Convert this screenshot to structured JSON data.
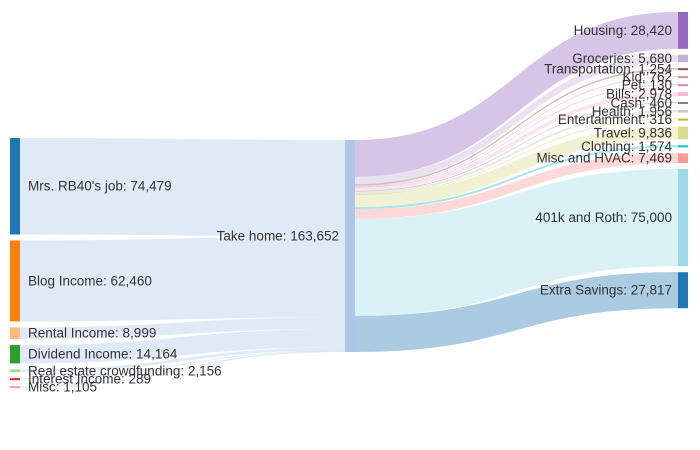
{
  "chart_data": {
    "type": "sankey",
    "total": {
      "name": "Take home",
      "value": 163652,
      "label": "Take home: 163,652",
      "color": "#aec7e8"
    },
    "sources": [
      {
        "name": "Mrs. RB40's job",
        "value": 74479,
        "label": "Mrs. RB40's job: 74,479",
        "color": "#1f77b4"
      },
      {
        "name": "Blog Income",
        "value": 62460,
        "label": "Blog Income: 62,460",
        "color": "#ff7f0e"
      },
      {
        "name": "Rental Income",
        "value": 8999,
        "label": "Rental Income: 8,999",
        "color": "#ffbb78"
      },
      {
        "name": "Dividend Income",
        "value": 14164,
        "label": "Dividend Income: 14,164",
        "color": "#2ca02c"
      },
      {
        "name": "Real estate crowdfunding",
        "value": 2156,
        "label": "Real estate crowdfunding: 2,156",
        "color": "#98df8a"
      },
      {
        "name": "Interest Income",
        "value": 289,
        "label": "Interest Income: 289",
        "color": "#d62728"
      },
      {
        "name": "Misc",
        "value": 1105,
        "label": "Misc: 1,105",
        "color": "#ff9896"
      }
    ],
    "targets": [
      {
        "name": "Housing",
        "value": 28420,
        "label": "Housing: 28,420",
        "color": "#9467bd"
      },
      {
        "name": "Groceries",
        "value": 5680,
        "label": "Groceries: 5,680",
        "color": "#c5b0d5"
      },
      {
        "name": "Transportation",
        "value": 1254,
        "label": "Transportation: 1,254",
        "color": "#8c564b"
      },
      {
        "name": "Kid",
        "value": 762,
        "label": "Kid: 762",
        "color": "#c49c94"
      },
      {
        "name": "Pet",
        "value": 130,
        "label": "Pet: 130",
        "color": "#e377c2"
      },
      {
        "name": "Bills",
        "value": 2978,
        "label": "Bills: 2,978",
        "color": "#f7b6d2"
      },
      {
        "name": "Cash",
        "value": 460,
        "label": "Cash: 460",
        "color": "#7f7f7f"
      },
      {
        "name": "Health",
        "value": 1956,
        "label": "Health: 1,956",
        "color": "#c7c7c7"
      },
      {
        "name": "Entertainment",
        "value": 316,
        "label": "Entertainment: 316",
        "color": "#bcbd22"
      },
      {
        "name": "Travel",
        "value": 9836,
        "label": "Travel: 9,836",
        "color": "#dbdb8d"
      },
      {
        "name": "Clothing",
        "value": 1574,
        "label": "Clothing: 1,574",
        "color": "#17becf"
      },
      {
        "name": "Misc and HVAC",
        "value": 7469,
        "label": "Misc and HVAC: 7,469",
        "color": "#ff9896"
      },
      {
        "name": "401k and Roth",
        "value": 75000,
        "label": "401k and Roth: 75,000",
        "color": "#9edae5"
      },
      {
        "name": "Extra Savings",
        "value": 27817,
        "label": "Extra Savings: 27,817",
        "color": "#1f77b4"
      }
    ]
  }
}
